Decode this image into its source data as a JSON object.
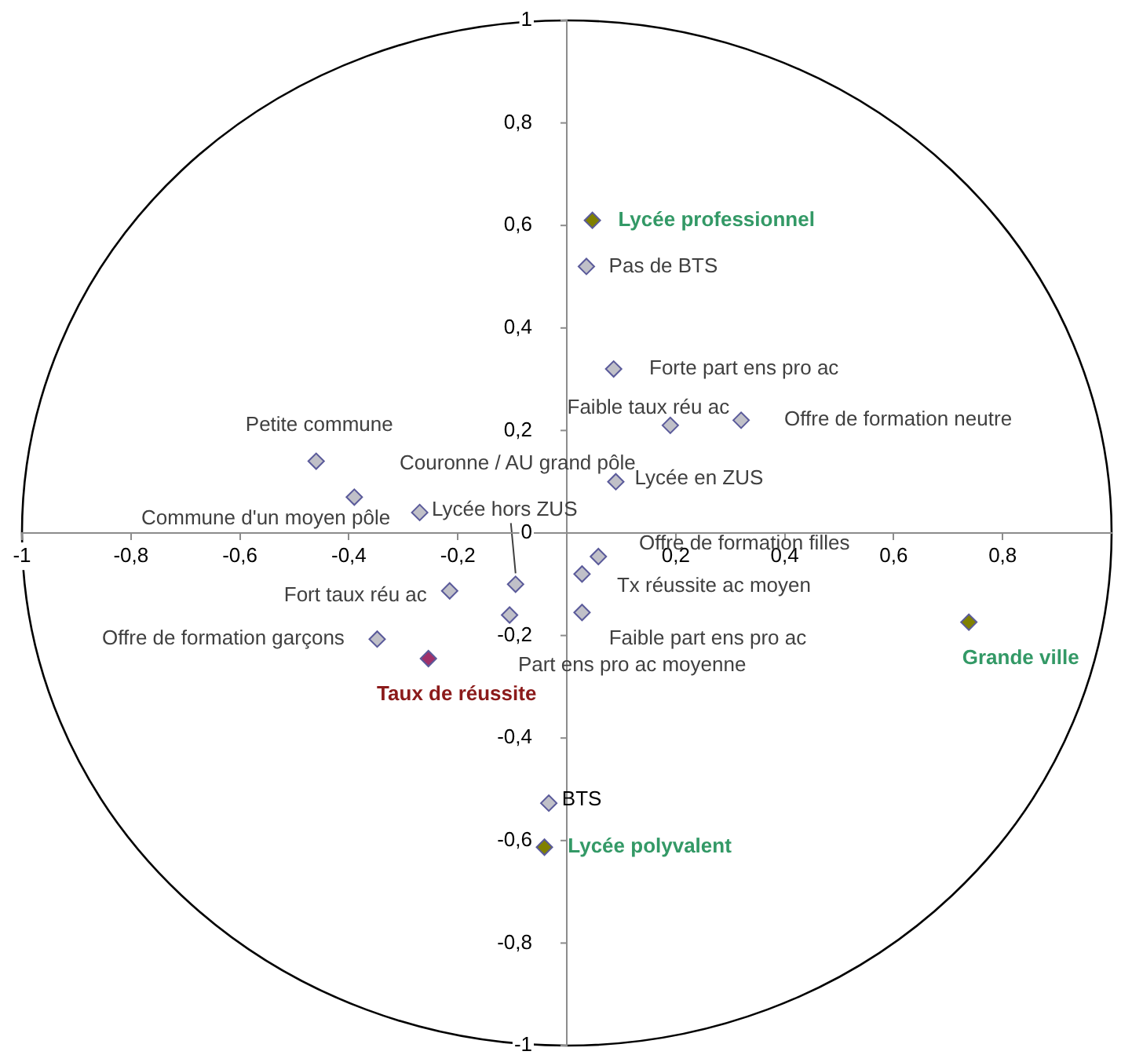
{
  "chart_data": {
    "type": "scatter",
    "xlim": [
      -1,
      1
    ],
    "ylim": [
      -1,
      1
    ],
    "xticks": [
      {
        "value": -1,
        "label": "-1"
      },
      {
        "value": -0.8,
        "label": "-0,8"
      },
      {
        "value": -0.6,
        "label": "-0,6"
      },
      {
        "value": -0.4,
        "label": "-0,4"
      },
      {
        "value": -0.2,
        "label": "-0,2"
      },
      {
        "value": 0,
        "label": null
      },
      {
        "value": 0.2,
        "label": "0,2"
      },
      {
        "value": 0.4,
        "label": "0,4"
      },
      {
        "value": 0.6,
        "label": "0,6"
      },
      {
        "value": 0.8,
        "label": "0,8"
      }
    ],
    "yticks": [
      -1,
      {
        "value": -0.8,
        "label": "-0,8"
      },
      {
        "value": -0.6,
        "label": "-0,6"
      },
      {
        "value": -0.4,
        "label": "-0,4"
      },
      {
        "value": -0.2,
        "label": "-0,2"
      },
      0,
      {
        "value": 0.2,
        "label": "0,2"
      },
      {
        "value": 0.4,
        "label": "0,4"
      },
      {
        "value": 0.6,
        "label": "0,6"
      },
      {
        "value": 0.8,
        "label": "0,8"
      },
      1
    ],
    "marker": "diamond",
    "legend": false,
    "series": [
      {
        "color": "#c0c0c8",
        "x": [
          0.036,
          0.086,
          0.19,
          0.32,
          0.09,
          -0.46,
          -0.39,
          -0.27,
          0.058,
          -0.094,
          -0.215,
          0.028,
          0.028,
          -0.105,
          -0.348,
          -0.033
        ],
        "values": [
          0.52,
          0.32,
          0.21,
          0.22,
          0.1,
          0.14,
          0.07,
          0.04,
          -0.046,
          -0.1,
          -0.113,
          -0.08,
          -0.155,
          -0.16,
          -0.207,
          -0.527
        ]
      },
      {
        "color": "#808000",
        "x": [
          0.047,
          0.738,
          -0.041
        ],
        "values": [
          0.61,
          -0.174,
          -0.613
        ]
      },
      {
        "color": "#a0306a",
        "x": [
          -0.254
        ],
        "values": [
          -0.245
        ]
      }
    ],
    "annotations": [
      {
        "text": "Pas de BTS",
        "x": 0.036,
        "y": 0.52
      },
      {
        "text": "Forte part ens pro ac",
        "x": 0.086,
        "y": 0.32
      },
      {
        "text": "Faible taux réu ac",
        "x": 0.19,
        "y": 0.21
      },
      {
        "text": "Offre de formation neutre",
        "x": 0.32,
        "y": 0.22
      },
      {
        "text": "Lycée en ZUS",
        "x": 0.09,
        "y": 0.1
      },
      {
        "text": "Petite commune",
        "x": -0.46,
        "y": 0.14
      },
      {
        "text": "Couronne / AU grand pôle",
        "x": -0.39,
        "y": 0.07
      },
      {
        "text": "Commune d'un moyen pôle",
        "x": -0.27,
        "y": 0.04
      },
      {
        "text": "Offre de formation filles",
        "x": 0.058,
        "y": -0.046
      },
      {
        "text": "Lycée hors ZUS",
        "x": -0.094,
        "y": -0.1
      },
      {
        "text": "Fort taux réu ac",
        "x": -0.215,
        "y": -0.113
      },
      {
        "text": "Tx réussite ac moyen",
        "x": 0.028,
        "y": -0.08
      },
      {
        "text": "Faible part ens pro ac",
        "x": 0.028,
        "y": -0.155
      },
      {
        "text": "Part ens pro ac moyenne",
        "x": -0.105,
        "y": -0.16
      },
      {
        "text": "Offre de formation garçons",
        "x": -0.348,
        "y": -0.207
      },
      {
        "text": "BTS",
        "x": -0.033,
        "y": -0.527
      },
      {
        "text": "Lycée professionnel",
        "x": 0.047,
        "y": 0.61
      },
      {
        "text": "Grande ville",
        "x": 0.738,
        "y": -0.174
      },
      {
        "text": "Lycée polyvalent",
        "x": -0.041,
        "y": -0.613
      },
      {
        "text": "Taux de réussite",
        "x": -0.254,
        "y": -0.245
      }
    ]
  }
}
